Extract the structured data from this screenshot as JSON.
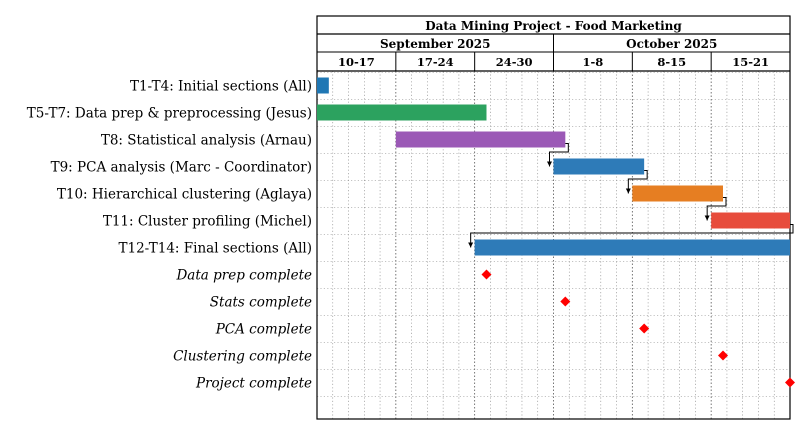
{
  "chart_data": {
    "type": "gantt",
    "title": "Data Mining Project - Food Marketing",
    "months": [
      {
        "label": "September 2025",
        "weeks": 3
      },
      {
        "label": "October 2025",
        "weeks": 3
      }
    ],
    "weeks": [
      "10-17",
      "17-24",
      "24-30",
      "1-8",
      "8-15",
      "15-21"
    ],
    "tasks": [
      {
        "label": "T1-T4: Initial sections (All)",
        "start": 0,
        "end": 0.15,
        "color": "#1f77b4"
      },
      {
        "label": "T5-T7: Data prep & preprocessing (Jesus)",
        "start": 0,
        "end": 2.15,
        "color": "#2ca25f"
      },
      {
        "label": "T8: Statistical analysis (Arnau)",
        "start": 1,
        "end": 3.15,
        "color": "#9b59b6"
      },
      {
        "label": "T9: PCA analysis (Marc - Coordinator)",
        "start": 3,
        "end": 4.15,
        "color": "#2e7bb8"
      },
      {
        "label": "T10: Hierarchical clustering (Aglaya)",
        "start": 4,
        "end": 5.15,
        "color": "#e67e22"
      },
      {
        "label": "T11: Cluster profiling (Michel)",
        "start": 5,
        "end": 6,
        "color": "#e74c3c"
      },
      {
        "label": "T12-T14: Final sections (All)",
        "start": 2,
        "end": 6,
        "color": "#2e7bb8"
      }
    ],
    "dependencies": [
      [
        2,
        3
      ],
      [
        3,
        4
      ],
      [
        4,
        5
      ],
      [
        5,
        6
      ]
    ],
    "milestones": [
      {
        "label": "Data prep complete",
        "at": 2.15
      },
      {
        "label": "Stats complete",
        "at": 3.15
      },
      {
        "label": "PCA complete",
        "at": 4.15
      },
      {
        "label": "Clustering complete",
        "at": 5.15
      },
      {
        "label": "Project complete",
        "at": 6
      }
    ],
    "milestone_color": "#ff0000",
    "grid": true
  }
}
